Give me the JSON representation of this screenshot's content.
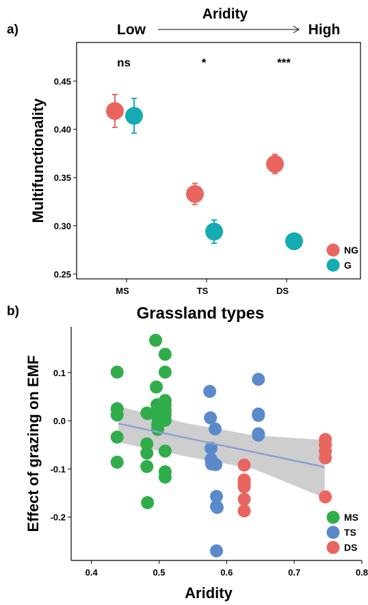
{
  "chart_data": [
    {
      "type": "scatter",
      "panel_label": "a)",
      "header": {
        "title": "Aridity",
        "left": "Low",
        "right": "High"
      },
      "ylabel": "Multifunctionality",
      "xlabel": "",
      "categories": [
        "MS",
        "TS",
        "DS"
      ],
      "ylim": [
        0.245,
        0.49
      ],
      "yticks": [
        "0.25",
        "0.30",
        "0.35",
        "0.40",
        "0.45"
      ],
      "significance": [
        "ns",
        "*",
        "***"
      ],
      "grid": false,
      "legend": {
        "position": "bottom-right",
        "entries": [
          "NG",
          "G"
        ]
      },
      "series": [
        {
          "name": "NG",
          "color": "#E8665F",
          "values": [
            0.419,
            0.333,
            0.364
          ],
          "error": [
            0.017,
            0.011,
            0.01
          ]
        },
        {
          "name": "G",
          "color": "#14ABB3",
          "values": [
            0.414,
            0.294,
            0.284
          ],
          "error": [
            0.018,
            0.012,
            0.005
          ]
        }
      ]
    },
    {
      "type": "scatter",
      "panel_label": "b)",
      "title": "Grassland types",
      "xlabel": "Aridity",
      "ylabel": "Effect of grazing on EMF",
      "xlim": [
        0.37,
        0.8
      ],
      "ylim": [
        -0.29,
        0.195
      ],
      "xticks": [
        "0.4",
        "0.5",
        "0.6",
        "0.7",
        "0.8"
      ],
      "yticks": [
        "-0.2",
        "-0.1",
        "0.0",
        "0.1"
      ],
      "grid": false,
      "legend": {
        "position": "bottom-right",
        "entries": [
          "MS",
          "TS",
          "DS"
        ]
      },
      "trend": {
        "x0": 0.44,
        "y0": -0.006,
        "x1": 0.745,
        "y1": -0.096,
        "band_lower": [
          -0.045,
          -0.074,
          -0.1,
          -0.16
        ],
        "band_upper": [
          0.03,
          -0.005,
          -0.03,
          -0.04
        ],
        "band_x": [
          0.44,
          0.54,
          0.64,
          0.745
        ]
      },
      "series": [
        {
          "name": "MS",
          "color": "#2FAD4A",
          "x": [
            0.438,
            0.438,
            0.438,
            0.438,
            0.438,
            0.482,
            0.482,
            0.482,
            0.482,
            0.483,
            0.483,
            0.495,
            0.496,
            0.497,
            0.497,
            0.498,
            0.498,
            0.499,
            0.509,
            0.509,
            0.509,
            0.509,
            0.509,
            0.509,
            0.509,
            0.509,
            0.509,
            0.509
          ],
          "y": [
            0.101,
            0.025,
            0.012,
            -0.034,
            -0.086,
            0.016,
            -0.048,
            -0.067,
            -0.095,
            -0.17,
            0.015,
            0.167,
            0.07,
            0.033,
            0.01,
            -0.008,
            -0.018,
            0.001,
            0.138,
            0.101,
            0.042,
            0.033,
            0.022,
            0.012,
            0.001,
            -0.063,
            -0.106,
            -0.117
          ]
        },
        {
          "name": "TS",
          "color": "#5B8ACB",
          "x": [
            0.575,
            0.576,
            0.577,
            0.577,
            0.578,
            0.578,
            0.583,
            0.584,
            0.585,
            0.585,
            0.585,
            0.586,
            0.647,
            0.647,
            0.647,
            0.647,
            0.647
          ],
          "y": [
            0.061,
            0.006,
            -0.057,
            -0.08,
            -0.09,
            -0.088,
            -0.017,
            -0.091,
            -0.157,
            -0.178,
            -0.27,
            -0.18,
            0.086,
            0.014,
            0.011,
            -0.027,
            -0.03
          ]
        },
        {
          "name": "DS",
          "color": "#E8665F",
          "x": [
            0.626,
            0.626,
            0.626,
            0.626,
            0.626,
            0.626,
            0.746,
            0.746,
            0.746,
            0.746,
            0.746
          ],
          "y": [
            -0.092,
            -0.123,
            -0.137,
            -0.163,
            -0.187,
            -0.128,
            -0.039,
            -0.05,
            -0.063,
            -0.077,
            -0.158
          ]
        }
      ]
    }
  ]
}
